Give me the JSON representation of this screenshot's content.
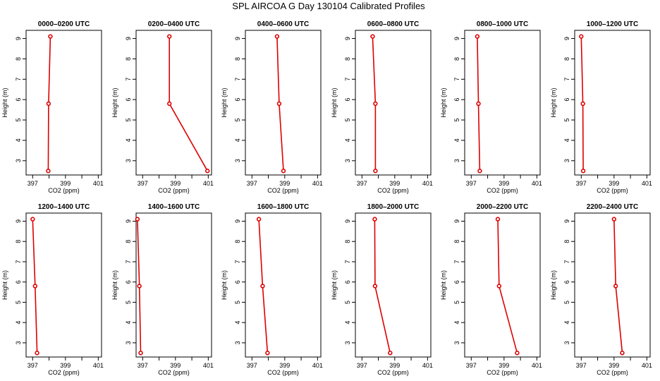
{
  "figure": {
    "title": "SPL AIRCOA G  Day 130104  Calibrated Profiles"
  },
  "chart_data": [
    {
      "type": "line",
      "title": "0000–0200 UTC",
      "xlabel": "CO2 (ppm)",
      "ylabel": "Height (m)",
      "xlim": [
        396.6,
        401.2
      ],
      "ylim": [
        2.3,
        9.4
      ],
      "xticks": [
        397,
        398,
        399,
        400,
        401
      ],
      "xtick_labels": [
        "397",
        "399",
        "401"
      ],
      "yticks": [
        3,
        4,
        5,
        6,
        7,
        8,
        9
      ],
      "series": [
        {
          "x": [
            397.95,
            397.97,
            398.08
          ],
          "y": [
            2.5,
            5.8,
            9.1
          ]
        }
      ]
    },
    {
      "type": "line",
      "title": "0200–0400 UTC",
      "xlabel": "CO2 (ppm)",
      "ylabel": "Height (m)",
      "xlim": [
        396.6,
        401.2
      ],
      "ylim": [
        2.3,
        9.4
      ],
      "xticks": [
        397,
        398,
        399,
        400,
        401
      ],
      "xtick_labels": [
        "397",
        "399",
        "401"
      ],
      "yticks": [
        3,
        4,
        5,
        6,
        7,
        8,
        9
      ],
      "series": [
        {
          "x": [
            400.95,
            398.63,
            398.63
          ],
          "y": [
            2.5,
            5.8,
            9.1
          ]
        }
      ]
    },
    {
      "type": "line",
      "title": "0400–0600 UTC",
      "xlabel": "CO2 (ppm)",
      "ylabel": "Height (m)",
      "xlim": [
        396.6,
        401.2
      ],
      "ylim": [
        2.3,
        9.4
      ],
      "xticks": [
        397,
        398,
        399,
        400,
        401
      ],
      "xtick_labels": [
        "397",
        "399",
        "401"
      ],
      "yticks": [
        3,
        4,
        5,
        6,
        7,
        8,
        9
      ],
      "series": [
        {
          "x": [
            398.92,
            398.66,
            398.53
          ],
          "y": [
            2.5,
            5.8,
            9.1
          ]
        }
      ]
    },
    {
      "type": "line",
      "title": "0600–0800 UTC",
      "xlabel": "CO2 (ppm)",
      "ylabel": "Height (m)",
      "xlim": [
        396.6,
        401.2
      ],
      "ylim": [
        2.3,
        9.4
      ],
      "xticks": [
        397,
        398,
        399,
        400,
        401
      ],
      "xtick_labels": [
        "397",
        "399",
        "401"
      ],
      "yticks": [
        3,
        4,
        5,
        6,
        7,
        8,
        9
      ],
      "series": [
        {
          "x": [
            397.82,
            397.82,
            397.65
          ],
          "y": [
            2.5,
            5.8,
            9.1
          ]
        }
      ]
    },
    {
      "type": "line",
      "title": "0800–1000 UTC",
      "xlabel": "CO2 (ppm)",
      "ylabel": "Height (m)",
      "xlim": [
        396.6,
        401.2
      ],
      "ylim": [
        2.3,
        9.4
      ],
      "xticks": [
        397,
        398,
        399,
        400,
        401
      ],
      "xtick_labels": [
        "397",
        "399",
        "401"
      ],
      "yticks": [
        3,
        4,
        5,
        6,
        7,
        8,
        9
      ],
      "series": [
        {
          "x": [
            397.52,
            397.44,
            397.37
          ],
          "y": [
            2.5,
            5.8,
            9.1
          ]
        }
      ]
    },
    {
      "type": "line",
      "title": "1000–1200 UTC",
      "xlabel": "CO2 (ppm)",
      "ylabel": "Height (m)",
      "xlim": [
        396.6,
        401.2
      ],
      "ylim": [
        2.3,
        9.4
      ],
      "xticks": [
        397,
        398,
        399,
        400,
        401
      ],
      "xtick_labels": [
        "397",
        "399",
        "401"
      ],
      "yticks": [
        3,
        4,
        5,
        6,
        7,
        8,
        9
      ],
      "series": [
        {
          "x": [
            397.12,
            397.1,
            397.0
          ],
          "y": [
            2.5,
            5.8,
            9.1
          ]
        }
      ]
    },
    {
      "type": "line",
      "title": "1200–1400 UTC",
      "xlabel": "CO2 (ppm)",
      "ylabel": "Height (m)",
      "xlim": [
        396.6,
        401.2
      ],
      "ylim": [
        2.3,
        9.4
      ],
      "xticks": [
        397,
        398,
        399,
        400,
        401
      ],
      "xtick_labels": [
        "397",
        "399",
        "401"
      ],
      "yticks": [
        3,
        4,
        5,
        6,
        7,
        8,
        9
      ],
      "series": [
        {
          "x": [
            397.27,
            397.15,
            397.0
          ],
          "y": [
            2.5,
            5.8,
            9.1
          ]
        }
      ]
    },
    {
      "type": "line",
      "title": "1400–1600 UTC",
      "xlabel": "CO2 (ppm)",
      "ylabel": "Height (m)",
      "xlim": [
        396.6,
        401.2
      ],
      "ylim": [
        2.3,
        9.4
      ],
      "xticks": [
        397,
        398,
        399,
        400,
        401
      ],
      "xtick_labels": [
        "397",
        "399",
        "401"
      ],
      "yticks": [
        3,
        4,
        5,
        6,
        7,
        8,
        9
      ],
      "series": [
        {
          "x": [
            396.88,
            396.8,
            396.68
          ],
          "y": [
            2.5,
            5.8,
            9.1
          ]
        }
      ]
    },
    {
      "type": "line",
      "title": "1600–1800 UTC",
      "xlabel": "CO2 (ppm)",
      "ylabel": "Height (m)",
      "xlim": [
        396.6,
        401.2
      ],
      "ylim": [
        2.3,
        9.4
      ],
      "xticks": [
        397,
        398,
        399,
        400,
        401
      ],
      "xtick_labels": [
        "397",
        "399",
        "401"
      ],
      "yticks": [
        3,
        4,
        5,
        6,
        7,
        8,
        9
      ],
      "series": [
        {
          "x": [
            397.95,
            397.65,
            397.42
          ],
          "y": [
            2.5,
            5.8,
            9.1
          ]
        }
      ]
    },
    {
      "type": "line",
      "title": "1800–2000 UTC",
      "xlabel": "CO2 (ppm)",
      "ylabel": "Height (m)",
      "xlim": [
        396.6,
        401.2
      ],
      "ylim": [
        2.3,
        9.4
      ],
      "xticks": [
        397,
        398,
        399,
        400,
        401
      ],
      "xtick_labels": [
        "397",
        "399",
        "401"
      ],
      "yticks": [
        3,
        4,
        5,
        6,
        7,
        8,
        9
      ],
      "series": [
        {
          "x": [
            398.72,
            397.8,
            397.78
          ],
          "y": [
            2.5,
            5.8,
            9.1
          ]
        }
      ]
    },
    {
      "type": "line",
      "title": "2000–2200 UTC",
      "xlabel": "CO2 (ppm)",
      "ylabel": "Height (m)",
      "xlim": [
        396.6,
        401.2
      ],
      "ylim": [
        2.3,
        9.4
      ],
      "xticks": [
        397,
        398,
        399,
        400,
        401
      ],
      "xtick_labels": [
        "397",
        "399",
        "401"
      ],
      "yticks": [
        3,
        4,
        5,
        6,
        7,
        8,
        9
      ],
      "series": [
        {
          "x": [
            399.8,
            398.7,
            398.62
          ],
          "y": [
            2.5,
            5.8,
            9.1
          ]
        }
      ]
    },
    {
      "type": "line",
      "title": "2200–2400 UTC",
      "xlabel": "CO2 (ppm)",
      "ylabel": "Height (m)",
      "xlim": [
        396.6,
        401.2
      ],
      "ylim": [
        2.3,
        9.4
      ],
      "xticks": [
        397,
        398,
        399,
        400,
        401
      ],
      "xtick_labels": [
        "397",
        "399",
        "401"
      ],
      "yticks": [
        3,
        4,
        5,
        6,
        7,
        8,
        9
      ],
      "series": [
        {
          "x": [
            399.5,
            399.1,
            399.0
          ],
          "y": [
            2.5,
            5.8,
            9.1
          ]
        }
      ]
    }
  ]
}
